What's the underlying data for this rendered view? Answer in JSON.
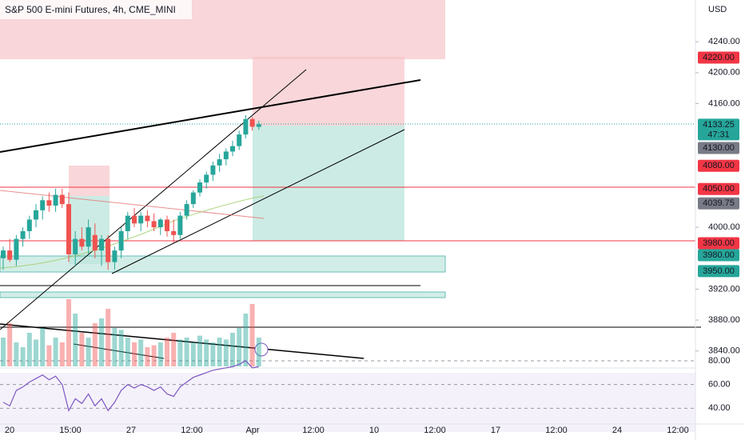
{
  "chart_data": {
    "type": "candlestick",
    "title": "S&P 500 E-mini Futures, 4h, CME_MINI",
    "currency": "USD",
    "countdown": "47:31",
    "up_color": "#26a69a",
    "down_color": "#ef5350",
    "ylim": [
      3818,
      4294
    ],
    "yticks": [
      {
        "value": 4240,
        "label": "4240.00"
      },
      {
        "value": 4200,
        "label": "4200.00"
      },
      {
        "value": 4160,
        "label": "4160.00"
      },
      {
        "value": 4000,
        "label": "4000.00"
      },
      {
        "value": 3920,
        "label": "3920.00"
      },
      {
        "value": 3880,
        "label": "3880.00"
      },
      {
        "value": 3840,
        "label": "3840.00"
      }
    ],
    "time_labels": [
      "20",
      "15:00",
      "27",
      "12:00",
      "Apr",
      "12:00",
      "10",
      "12:00",
      "17",
      "12:00",
      "24",
      "12:00"
    ],
    "open": [
      3960,
      3970,
      3958,
      3985,
      3995,
      4010,
      4022,
      4035,
      4028,
      4042,
      4030,
      3965,
      3985,
      3975,
      3990,
      3970,
      3985,
      3955,
      3970,
      3995,
      4015,
      4005,
      4015,
      4008,
      4000,
      4010,
      3995,
      3990,
      4015,
      4030,
      4045,
      4058,
      4068,
      4080,
      4088,
      4098,
      4105,
      4120,
      4140,
      4130
    ],
    "high": [
      3975,
      3985,
      3990,
      4000,
      4015,
      4030,
      4040,
      4045,
      4050,
      4050,
      4045,
      3995,
      4000,
      4010,
      4005,
      3990,
      3990,
      3975,
      4000,
      4020,
      4025,
      4020,
      4022,
      4018,
      4012,
      4015,
      4010,
      4020,
      4035,
      4048,
      4062,
      4072,
      4085,
      4095,
      4102,
      4112,
      4125,
      4145,
      4143,
      4138
    ],
    "low": [
      3945,
      3955,
      3950,
      3975,
      3985,
      4000,
      4010,
      4020,
      4020,
      4025,
      3955,
      3950,
      3970,
      3965,
      3960,
      3950,
      3945,
      3945,
      3960,
      3985,
      4000,
      3995,
      4000,
      3995,
      3990,
      3988,
      3980,
      3985,
      4010,
      4025,
      4040,
      4050,
      4060,
      4072,
      4080,
      4092,
      4100,
      4115,
      4125,
      4126
    ],
    "close": [
      3970,
      3958,
      3985,
      3995,
      4010,
      4022,
      4035,
      4028,
      4042,
      4030,
      3965,
      3985,
      3975,
      4000,
      3970,
      3985,
      3955,
      3970,
      3995,
      4015,
      4005,
      4015,
      4008,
      4000,
      4010,
      3995,
      3990,
      4015,
      4030,
      4045,
      4058,
      4068,
      4080,
      4088,
      4098,
      4105,
      4120,
      4140,
      4130,
      4133.25
    ],
    "volume": [
      30,
      45,
      25,
      20,
      35,
      28,
      40,
      22,
      30,
      25,
      70,
      55,
      35,
      30,
      45,
      50,
      60,
      40,
      38,
      30,
      25,
      28,
      20,
      22,
      25,
      30,
      35,
      28,
      30,
      25,
      32,
      28,
      25,
      30,
      28,
      35,
      40,
      55,
      65,
      30
    ],
    "rsi": [
      45,
      42,
      55,
      58,
      62,
      65,
      68,
      64,
      67,
      60,
      38,
      48,
      44,
      52,
      42,
      48,
      38,
      45,
      55,
      60,
      57,
      60,
      58,
      55,
      58,
      52,
      50,
      58,
      62,
      66,
      68,
      70,
      72,
      73,
      74,
      75,
      77,
      80,
      74,
      75
    ],
    "rsi_color": "#7e57c2",
    "rsi_ylim": [
      84,
      20
    ],
    "rsi_yticks": [
      {
        "value": 80,
        "label": "80.00"
      },
      {
        "value": 60,
        "label": "60.00"
      },
      {
        "value": 40,
        "label": "40.00"
      }
    ],
    "price_tags": [
      {
        "value": 4220,
        "label": "4220.00",
        "color": "#f23645"
      },
      {
        "value": 4133.25,
        "label": "4133.25",
        "color": "#26a69a"
      },
      {
        "value": 4130,
        "label": "4130.00",
        "color": "#787b86"
      },
      {
        "value": 4080,
        "label": "4080.00",
        "color": "#f23645"
      },
      {
        "value": 4050,
        "label": "4050.00",
        "color": "#f23645"
      },
      {
        "value": 4039.75,
        "label": "4039.75",
        "color": "#787b86"
      },
      {
        "value": 3980,
        "label": "3980.00",
        "color": "#f23645"
      },
      {
        "value": 3980,
        "label": "3980.00",
        "color": "#26a69a"
      },
      {
        "value": 3950,
        "label": "3950.00",
        "color": "#26a69a"
      }
    ]
  }
}
